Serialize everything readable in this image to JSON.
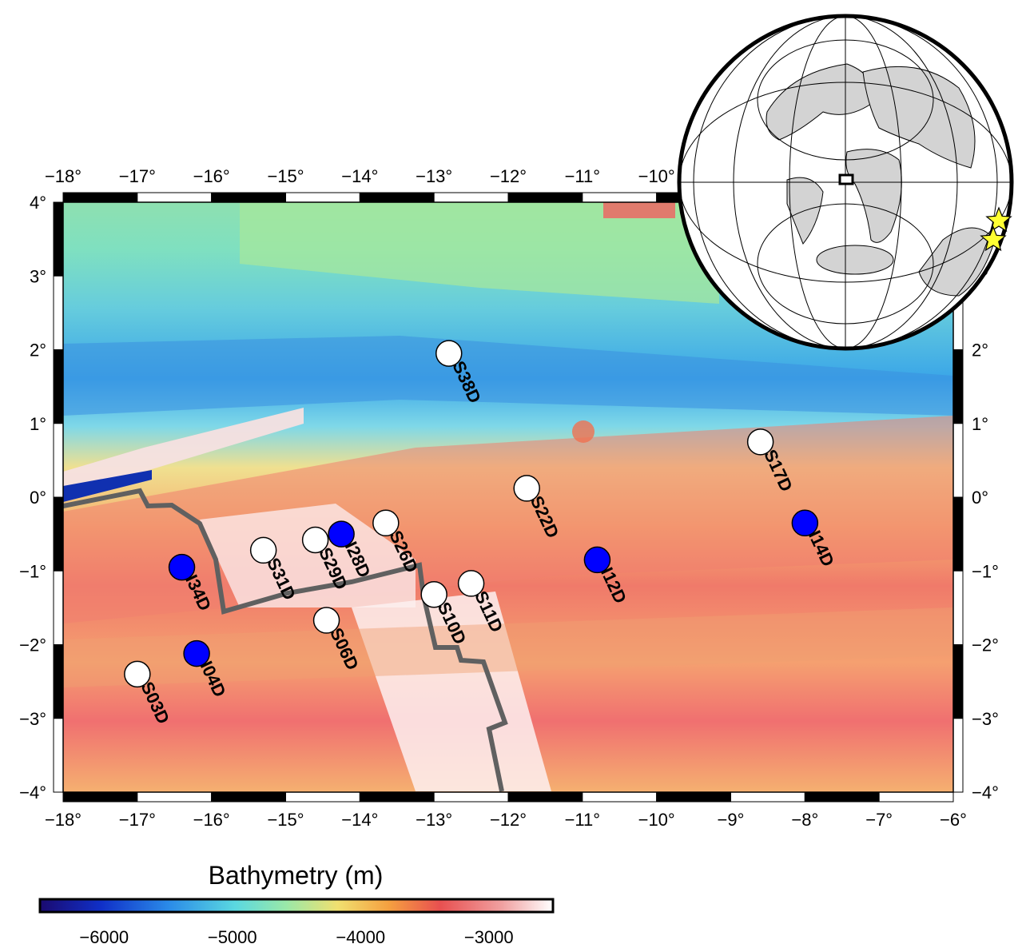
{
  "map": {
    "lon_ticks": [
      "−18°",
      "−17°",
      "−16°",
      "−15°",
      "−14°",
      "−13°",
      "−12°",
      "−11°",
      "−10°",
      "−9°",
      "−8°",
      "−7°",
      "−6°"
    ],
    "lat_ticks": [
      "4°",
      "3°",
      "2°",
      "1°",
      "0°",
      "−1°",
      "−2°",
      "−3°",
      "−4°"
    ],
    "lon_range": [
      -18,
      -6
    ],
    "lat_range": [
      -4,
      4
    ]
  },
  "colorbar": {
    "title": "Bathymetry (m)",
    "ticks": [
      "−6000",
      "−5000",
      "−4000",
      "−3000"
    ],
    "range": [
      -6500,
      -2500
    ],
    "palette": "rainbow (blue → cyan → green → yellow → red → white)"
  },
  "stations": [
    {
      "name": "S38D",
      "lon": -12.8,
      "lat": 1.95,
      "type": "white"
    },
    {
      "name": "S17D",
      "lon": -8.6,
      "lat": 0.75,
      "type": "white"
    },
    {
      "name": "I14D",
      "lon": -8.0,
      "lat": -0.35,
      "type": "blue"
    },
    {
      "name": "S22D",
      "lon": -11.75,
      "lat": 0.12,
      "type": "white"
    },
    {
      "name": "I12D",
      "lon": -10.8,
      "lat": -0.85,
      "type": "blue"
    },
    {
      "name": "S26D",
      "lon": -13.65,
      "lat": -0.35,
      "type": "white"
    },
    {
      "name": "I28D",
      "lon": -14.25,
      "lat": -0.5,
      "type": "blue"
    },
    {
      "name": "S29D",
      "lon": -14.6,
      "lat": -0.58,
      "type": "white"
    },
    {
      "name": "S31D",
      "lon": -15.3,
      "lat": -0.72,
      "type": "white"
    },
    {
      "name": "I34D",
      "lon": -16.4,
      "lat": -0.95,
      "type": "blue"
    },
    {
      "name": "S10D",
      "lon": -13.0,
      "lat": -1.32,
      "type": "white"
    },
    {
      "name": "S11D",
      "lon": -12.5,
      "lat": -1.17,
      "type": "white"
    },
    {
      "name": "S06D",
      "lon": -14.45,
      "lat": -1.67,
      "type": "white"
    },
    {
      "name": "I04D",
      "lon": -16.2,
      "lat": -2.12,
      "type": "blue"
    },
    {
      "name": "S03D",
      "lon": -17.0,
      "lat": -2.4,
      "type": "white"
    }
  ],
  "colors": {
    "blue_station": "#0000ff",
    "white_station": "#ffffff",
    "fracture_zone": "#606060",
    "star": "#ffff33",
    "land": "#d3d3d3"
  }
}
